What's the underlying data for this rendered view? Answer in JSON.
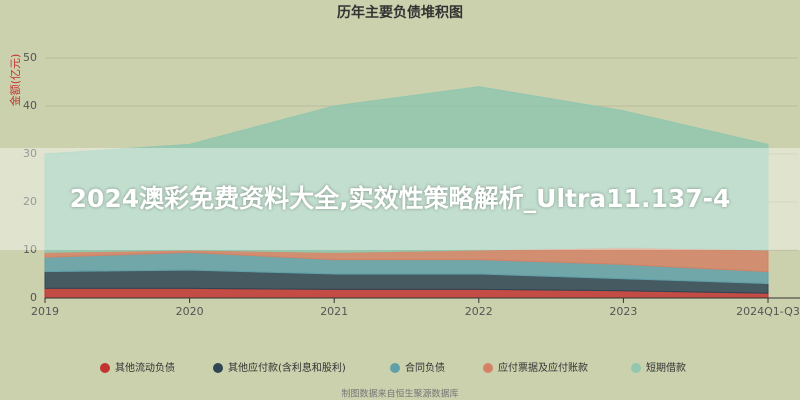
{
  "chart_data": {
    "type": "stacked-area",
    "title": "历年主要负债堆积图",
    "y_label": "金额(亿元)",
    "categories": [
      "2019",
      "2020",
      "2021",
      "2022",
      "2023",
      "2024Q1-Q3"
    ],
    "series": [
      {
        "name": "其他流动负债",
        "color": "#c23531",
        "values": [
          2,
          2,
          1.8,
          1.8,
          1.5,
          1
        ]
      },
      {
        "name": "其他应付款(含利息和股利)",
        "color": "#2f4554",
        "values": [
          3.5,
          3.8,
          3.2,
          3.2,
          2.5,
          2
        ]
      },
      {
        "name": "合同负债",
        "color": "#61a0a8",
        "values": [
          3,
          3.7,
          3,
          3,
          3,
          2.5
        ]
      },
      {
        "name": "应付票据及应付账款",
        "color": "#d48265",
        "values": [
          1,
          0.5,
          1.5,
          2,
          3.5,
          4.5
        ]
      },
      {
        "name": "短期借款",
        "color": "#91c7ae",
        "values": [
          20.5,
          22,
          30.5,
          34,
          28.5,
          22
        ]
      }
    ],
    "ylim": [
      0,
      50
    ],
    "yticks": [
      0,
      10,
      20,
      30,
      40,
      50
    ],
    "grid": true,
    "source": "制图数据来自恒生聚源数据库"
  },
  "banner": "2024澳彩免费资料大全,实效性策略解析_Ultra11.137-4"
}
